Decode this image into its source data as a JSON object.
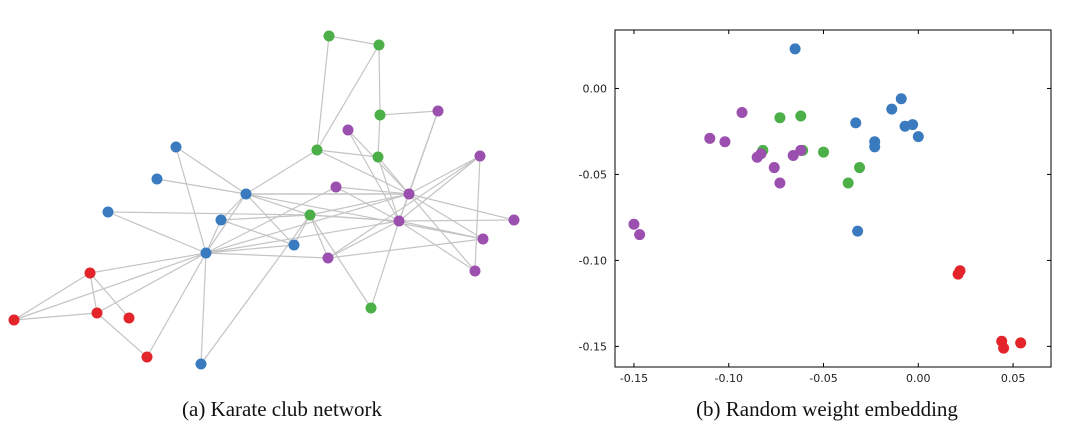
{
  "captions": {
    "a": "(a) Karate club network",
    "b": "(b) Random weight embedding"
  },
  "colors": {
    "blue": "#3a7bbf",
    "red": "#e3242b",
    "green": "#4caf47",
    "purple": "#9b4fae",
    "edge": "#c4c4c4"
  },
  "chart_data": [
    {
      "type": "network",
      "title": "",
      "node_groups": [
        "blue",
        "red",
        "green",
        "purple"
      ],
      "nodes": [
        {
          "group": "green"
        },
        {
          "group": "green"
        },
        {
          "group": "green"
        },
        {
          "group": "purple"
        },
        {
          "group": "purple"
        },
        {
          "group": "green"
        },
        {
          "group": "green"
        },
        {
          "group": "blue"
        },
        {
          "group": "purple"
        },
        {
          "group": "blue"
        },
        {
          "group": "purple"
        },
        {
          "group": "purple"
        },
        {
          "group": "blue"
        },
        {
          "group": "green"
        },
        {
          "group": "blue"
        },
        {
          "group": "purple"
        },
        {
          "group": "blue"
        },
        {
          "group": "purple"
        },
        {
          "group": "blue"
        },
        {
          "group": "blue"
        },
        {
          "group": "red"
        },
        {
          "group": "purple"
        },
        {
          "group": "purple"
        },
        {
          "group": "red"
        },
        {
          "group": "red"
        },
        {
          "group": "red"
        },
        {
          "group": "purple"
        },
        {
          "group": "green"
        },
        {
          "group": "red"
        },
        {
          "group": "blue"
        }
      ]
    },
    {
      "type": "scatter",
      "title": "",
      "xlabel": "",
      "ylabel": "",
      "xlim": [
        -0.16,
        0.07
      ],
      "ylim": [
        -0.162,
        0.034
      ],
      "x_ticks": [
        "-0.15",
        "-0.10",
        "-0.05",
        "0.00",
        "0.05"
      ],
      "y_ticks": [
        "0.00",
        "-0.05",
        "-0.10",
        "-0.15"
      ],
      "grid": false,
      "series": [
        {
          "group": "blue",
          "points": [
            [
              -0.065,
              0.023
            ],
            [
              -0.033,
              -0.02
            ],
            [
              -0.014,
              -0.012
            ],
            [
              -0.009,
              -0.006
            ],
            [
              -0.007,
              -0.022
            ],
            [
              -0.003,
              -0.021
            ],
            [
              0.0,
              -0.028
            ],
            [
              -0.023,
              -0.031
            ],
            [
              -0.023,
              -0.034
            ],
            [
              -0.032,
              -0.083
            ]
          ]
        },
        {
          "group": "green",
          "points": [
            [
              -0.073,
              -0.017
            ],
            [
              -0.062,
              -0.016
            ],
            [
              -0.082,
              -0.036
            ],
            [
              -0.061,
              -0.036
            ],
            [
              -0.05,
              -0.037
            ],
            [
              -0.031,
              -0.046
            ],
            [
              -0.037,
              -0.055
            ]
          ]
        },
        {
          "group": "purple",
          "points": [
            [
              -0.15,
              -0.079
            ],
            [
              -0.147,
              -0.085
            ],
            [
              -0.11,
              -0.029
            ],
            [
              -0.102,
              -0.031
            ],
            [
              -0.093,
              -0.014
            ],
            [
              -0.085,
              -0.04
            ],
            [
              -0.083,
              -0.038
            ],
            [
              -0.076,
              -0.046
            ],
            [
              -0.073,
              -0.055
            ],
            [
              -0.066,
              -0.039
            ],
            [
              -0.062,
              -0.036
            ]
          ]
        },
        {
          "group": "red",
          "points": [
            [
              0.021,
              -0.108
            ],
            [
              0.022,
              -0.106
            ],
            [
              0.044,
              -0.147
            ],
            [
              0.045,
              -0.151
            ],
            [
              0.054,
              -0.148
            ]
          ]
        }
      ]
    }
  ]
}
